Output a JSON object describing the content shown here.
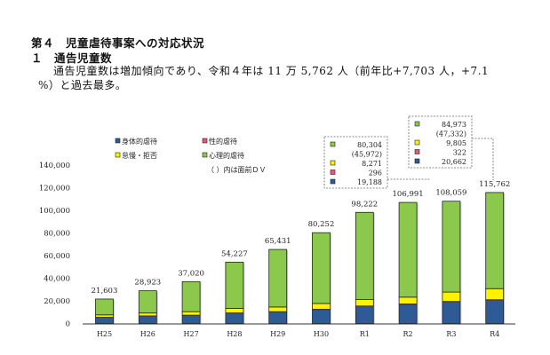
{
  "section": {
    "heading": "第４　児童虐待事案への対応状況",
    "sub_number": "１",
    "sub_title": "通告児童数",
    "body_line1": "通告児童数は増加傾向であり、令和４年は 11 万 5,762 人（前年比+7,703 人，+7.1",
    "body_line2": "%）と過去最多。"
  },
  "chart_data": {
    "type": "bar",
    "stacked": true,
    "title": "",
    "xlabel": "",
    "ylabel": "",
    "ylim": [
      0,
      140000
    ],
    "yticks": [
      0,
      20000,
      40000,
      60000,
      80000,
      100000,
      120000,
      140000
    ],
    "ytick_labels": [
      "0",
      "20,000",
      "40,000",
      "60,000",
      "80,000",
      "100,000",
      "120,000",
      "140,000"
    ],
    "grid": false,
    "legend_position": "top-left",
    "categories": [
      "H25",
      "H26",
      "H27",
      "H28",
      "H29",
      "H30",
      "R1",
      "R2",
      "R3",
      "R4"
    ],
    "totals": [
      21603,
      28923,
      37020,
      54227,
      65431,
      80252,
      98222,
      106991,
      108059,
      115762
    ],
    "total_labels": [
      "21,603",
      "28,923",
      "37,020",
      "54,227",
      "65,431",
      "80,252",
      "98,222",
      "106,991",
      "108,059",
      "115,762"
    ],
    "series": [
      {
        "name": "身体的虐待",
        "color": "#2e5b96",
        "values": [
          5431,
          6557,
          7178,
          9073,
          10257,
          12343,
          15160,
          16983,
          19188,
          20662
        ]
      },
      {
        "name": "性的虐待",
        "color": "#e8557d",
        "values": [
          148,
          147,
          191,
          226,
          212,
          241,
          274,
          253,
          296,
          322
        ]
      },
      {
        "name": "怠慢・拒否",
        "color": "#fff200",
        "values": [
          2046,
          2559,
          3058,
          4073,
          4111,
          5083,
          5706,
          6051,
          8271,
          9805
        ]
      },
      {
        "name": "心理的虐待",
        "color": "#8cc84b",
        "values": [
          13978,
          19660,
          26593,
          40856,
          50851,
          62585,
          77082,
          83704,
          80304,
          84973
        ]
      }
    ],
    "legend_note": "（ ）内は面前ＤＶ",
    "callouts": [
      {
        "category": "R3",
        "lines": [
          {
            "series": "心理的虐待",
            "text": "80,304",
            "color": "#8cc84b"
          },
          {
            "series": null,
            "text": "(45,972)",
            "color": null
          },
          {
            "series": "怠慢・拒否",
            "text": "8,271",
            "color": "#fff200"
          },
          {
            "series": "性的虐待",
            "text": "296",
            "color": "#e8557d"
          },
          {
            "series": "身体的虐待",
            "text": "19,188",
            "color": "#2e5b96"
          }
        ]
      },
      {
        "category": "R4",
        "lines": [
          {
            "series": "心理的虐待",
            "text": "84,973",
            "color": "#8cc84b"
          },
          {
            "series": null,
            "text": "(47,332)",
            "color": null
          },
          {
            "series": "怠慢・拒否",
            "text": "9,805",
            "color": "#fff200"
          },
          {
            "series": "性的虐待",
            "text": "322",
            "color": "#e8557d"
          },
          {
            "series": "身体的虐待",
            "text": "20,662",
            "color": "#2e5b96"
          }
        ]
      }
    ]
  }
}
